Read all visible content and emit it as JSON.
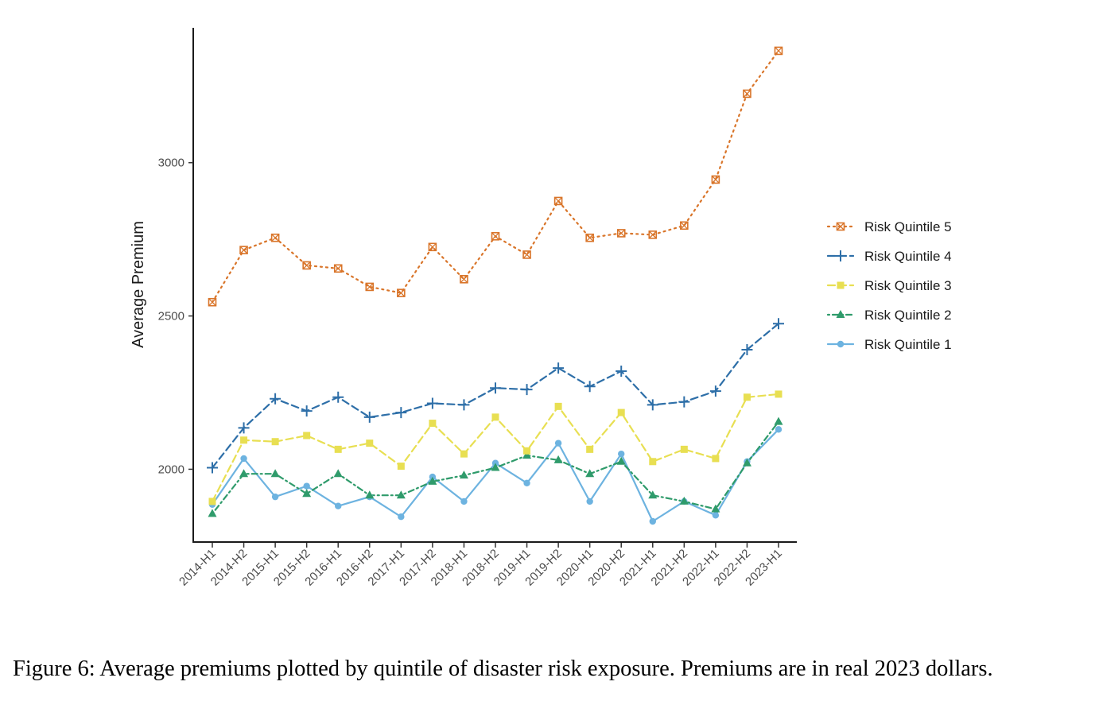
{
  "chart_data": {
    "type": "line",
    "title": "",
    "xlabel": "",
    "ylabel": "Average Premium",
    "ylim": [
      1760,
      3440
    ],
    "yticks": [
      2000,
      2500,
      3000
    ],
    "categories": [
      "2014-H1",
      "2014-H2",
      "2015-H1",
      "2015-H2",
      "2016-H1",
      "2016-H2",
      "2017-H1",
      "2017-H2",
      "2018-H1",
      "2018-H2",
      "2019-H1",
      "2019-H2",
      "2020-H1",
      "2020-H2",
      "2021-H1",
      "2021-H2",
      "2022-H1",
      "2022-H2",
      "2023-H1"
    ],
    "legend_position": "right",
    "grid": false,
    "series": [
      {
        "name": "Risk Quintile 5",
        "color": "#d9752a",
        "dash": "dotted",
        "marker": "square-x",
        "values": [
          2545,
          2715,
          2755,
          2665,
          2655,
          2595,
          2575,
          2725,
          2620,
          2760,
          2700,
          2875,
          2755,
          2770,
          2765,
          2795,
          2945,
          3225,
          3365
        ]
      },
      {
        "name": "Risk Quintile 4",
        "color": "#2e6fa8",
        "dash": "dashed",
        "marker": "plus",
        "values": [
          2005,
          2135,
          2230,
          2190,
          2235,
          2170,
          2185,
          2215,
          2210,
          2265,
          2260,
          2330,
          2270,
          2320,
          2210,
          2220,
          2255,
          2390,
          2475
        ]
      },
      {
        "name": "Risk Quintile 3",
        "color": "#e8df52",
        "dash": "dashed",
        "marker": "square",
        "values": [
          1895,
          2095,
          2090,
          2110,
          2065,
          2085,
          2010,
          2150,
          2050,
          2170,
          2060,
          2205,
          2065,
          2185,
          2025,
          2065,
          2035,
          2235,
          2245
        ]
      },
      {
        "name": "Risk Quintile 2",
        "color": "#2f9b6b",
        "dash": "dotdash",
        "marker": "triangle",
        "values": [
          1855,
          1985,
          1985,
          1920,
          1985,
          1915,
          1915,
          1960,
          1980,
          2005,
          2045,
          2030,
          1985,
          2025,
          1915,
          1895,
          1870,
          2020,
          2155
        ]
      },
      {
        "name": "Risk Quintile 1",
        "color": "#6db3e0",
        "dash": "solid",
        "marker": "circle",
        "values": [
          1885,
          2035,
          1910,
          1945,
          1880,
          1910,
          1845,
          1975,
          1895,
          2020,
          1955,
          2085,
          1895,
          2050,
          1830,
          1895,
          1850,
          2025,
          2130
        ]
      }
    ]
  },
  "caption": {
    "text": "Figure 6:  Average premiums plotted by quintile of disaster risk exposure.  Premiums are in real 2023 dollars."
  }
}
